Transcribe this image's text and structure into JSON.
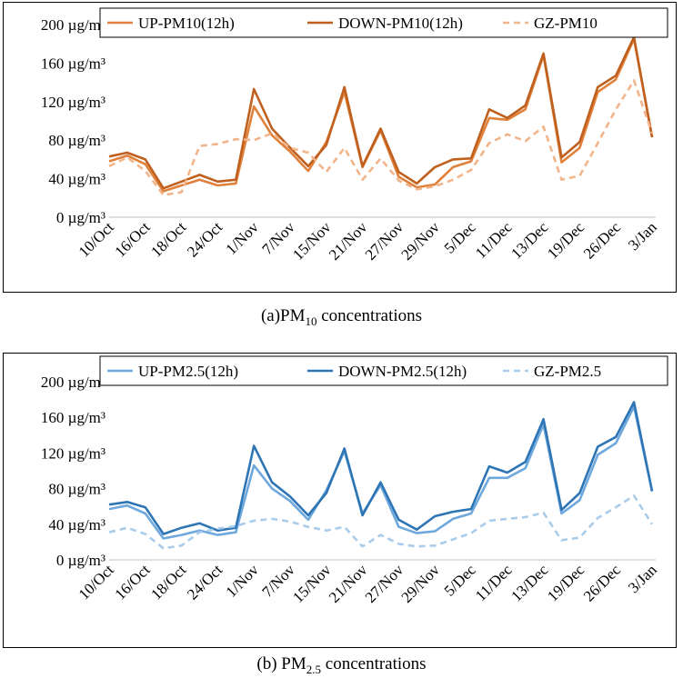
{
  "chart_data": [
    {
      "type": "line",
      "caption_prefix": "(a)PM",
      "caption_sub": "10",
      "caption_suffix": " concentrations",
      "ylim": [
        0,
        200
      ],
      "yticks": [
        "0 µg/m³",
        "40 µg/m³",
        "80 µg/m³",
        "120 µg/m³",
        "160 µg/m³",
        "200 µg/m³"
      ],
      "ytick_values": [
        0,
        40,
        80,
        120,
        160,
        200
      ],
      "categories": [
        "10/Oct",
        "",
        "16/Oct",
        "",
        "18/Oct",
        "",
        "24/Oct",
        "",
        "1/Nov",
        "",
        "7/Nov",
        "",
        "15/Nov",
        "",
        "21/Nov",
        "",
        "27/Nov",
        "",
        "29/Nov",
        "",
        "5/Dec",
        "",
        "11/Dec",
        "",
        "13/Dec",
        "",
        "19/Dec",
        "",
        "26/Dec",
        "",
        "3/Jan"
      ],
      "x_labels": [
        "10/Oct",
        "16/Oct",
        "18/Oct",
        "24/Oct",
        "1/Nov",
        "7/Nov",
        "15/Nov",
        "21/Nov",
        "27/Nov",
        "29/Nov",
        "5/Dec",
        "11/Dec",
        "13/Dec",
        "19/Dec",
        "26/Dec",
        "3/Jan"
      ],
      "series": [
        {
          "name": "UP-PM10(12h)",
          "color": "#E0813C",
          "dash": false,
          "values": [
            58,
            64,
            55,
            27,
            33,
            39,
            33,
            35,
            115,
            85,
            68,
            48,
            78,
            130,
            52,
            90,
            42,
            31,
            34,
            52,
            58,
            103,
            101,
            112,
            168,
            57,
            72,
            130,
            143,
            185,
            83
          ]
        },
        {
          "name": "DOWN-PM10(12h)",
          "color": "#C0601E",
          "dash": false,
          "values": [
            63,
            67,
            60,
            30,
            37,
            44,
            37,
            39,
            133,
            92,
            72,
            53,
            75,
            135,
            53,
            92,
            47,
            35,
            52,
            60,
            61,
            112,
            103,
            116,
            170,
            62,
            78,
            135,
            147,
            187,
            83
          ]
        },
        {
          "name": "GZ-PM10",
          "color": "#F2B48A",
          "dash": true,
          "values": [
            53,
            62,
            48,
            23,
            26,
            74,
            76,
            81,
            80,
            87,
            72,
            67,
            47,
            72,
            39,
            61,
            38,
            29,
            32,
            39,
            49,
            77,
            86,
            79,
            94,
            39,
            43,
            77,
            112,
            142,
            87
          ]
        }
      ]
    },
    {
      "type": "line",
      "caption_prefix": "(b) PM",
      "caption_sub": "2.5",
      "caption_suffix": " concentrations",
      "ylim": [
        0,
        200
      ],
      "yticks": [
        "0 µg/m³",
        "40 µg/m³",
        "80 µg/m³",
        "120 µg/m³",
        "160 µg/m³",
        "200 µg/m³"
      ],
      "ytick_values": [
        0,
        40,
        80,
        120,
        160,
        200
      ],
      "categories": [
        "10/Oct",
        "",
        "16/Oct",
        "",
        "18/Oct",
        "",
        "24/Oct",
        "",
        "1/Nov",
        "",
        "7/Nov",
        "",
        "15/Nov",
        "",
        "21/Nov",
        "",
        "27/Nov",
        "",
        "29/Nov",
        "",
        "5/Dec",
        "",
        "11/Dec",
        "",
        "13/Dec",
        "",
        "19/Dec",
        "",
        "26/Dec",
        "",
        "3/Jan"
      ],
      "x_labels": [
        "10/Oct",
        "16/Oct",
        "18/Oct",
        "24/Oct",
        "1/Nov",
        "7/Nov",
        "15/Nov",
        "21/Nov",
        "27/Nov",
        "29/Nov",
        "5/Dec",
        "11/Dec",
        "13/Dec",
        "19/Dec",
        "26/Dec",
        "3/Jan"
      ],
      "series": [
        {
          "name": "UP-PM2.5(12h)",
          "color": "#6FA8DC",
          "dash": false,
          "values": [
            57,
            61,
            52,
            24,
            28,
            33,
            28,
            31,
            106,
            80,
            66,
            45,
            78,
            122,
            52,
            84,
            37,
            30,
            32,
            46,
            52,
            92,
            92,
            103,
            152,
            52,
            67,
            118,
            131,
            172,
            77
          ]
        },
        {
          "name": "DOWN-PM2.5(12h)",
          "color": "#2E75B6",
          "dash": false,
          "values": [
            62,
            65,
            59,
            29,
            36,
            41,
            33,
            36,
            128,
            87,
            71,
            50,
            75,
            125,
            50,
            87,
            45,
            34,
            49,
            54,
            57,
            105,
            98,
            110,
            158,
            56,
            75,
            127,
            138,
            177,
            77
          ]
        },
        {
          "name": "GZ-PM2.5",
          "color": "#A9CCEA",
          "dash": true,
          "values": [
            31,
            36,
            29,
            13,
            16,
            31,
            35,
            38,
            44,
            46,
            43,
            37,
            33,
            37,
            15,
            28,
            18,
            15,
            16,
            23,
            30,
            44,
            46,
            48,
            53,
            22,
            25,
            47,
            59,
            72,
            40
          ]
        }
      ]
    }
  ]
}
